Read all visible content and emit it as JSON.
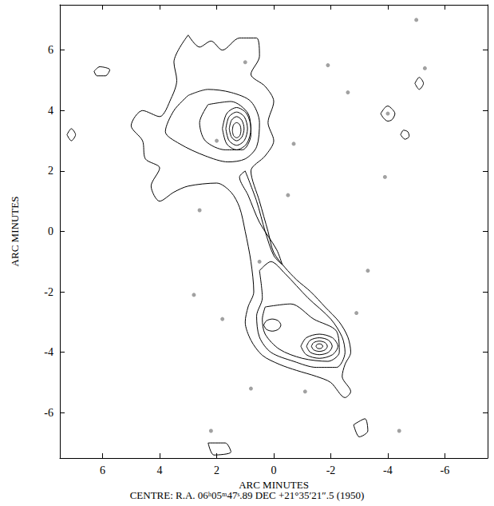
{
  "chart_data": {
    "type": "contour",
    "xlabel": "ARC MINUTES",
    "ylabel": "ARC MINUTES",
    "caption": "CENTRE: R.A. 06ʰ05ᵐ47ˢ.89 DEC +21°35′21″.5 (1950)",
    "xlim": [
      7.5,
      -7.5
    ],
    "ylim": [
      -7.5,
      7.5
    ],
    "xticks": [
      6,
      4,
      2,
      0,
      -2,
      -4,
      -6
    ],
    "yticks": [
      -6,
      -4,
      -2,
      0,
      2,
      4,
      6
    ],
    "grid": false,
    "color": "#000000",
    "contours": [
      [
        [
          3.0,
          6.5
        ],
        [
          2.6,
          6.1
        ],
        [
          2.2,
          6.3
        ],
        [
          1.8,
          6.0
        ],
        [
          1.2,
          6.4
        ],
        [
          0.6,
          6.4
        ],
        [
          0.5,
          5.8
        ],
        [
          0.8,
          5.2
        ],
        [
          0.3,
          4.8
        ],
        [
          0.0,
          4.3
        ],
        [
          0.2,
          3.6
        ],
        [
          0.0,
          3.0
        ],
        [
          0.3,
          2.5
        ],
        [
          0.8,
          2.0
        ],
        [
          0.5,
          1.0
        ],
        [
          0.2,
          0.0
        ],
        [
          0.0,
          -0.7
        ],
        [
          -0.4,
          -1.2
        ],
        [
          -0.8,
          -1.6
        ],
        [
          -1.3,
          -2.0
        ],
        [
          -1.8,
          -2.5
        ],
        [
          -2.3,
          -3.0
        ],
        [
          -2.6,
          -3.5
        ],
        [
          -2.7,
          -4.0
        ],
        [
          -2.5,
          -4.4
        ],
        [
          -2.4,
          -4.8
        ],
        [
          -2.7,
          -5.3
        ],
        [
          -2.5,
          -5.5
        ],
        [
          -2.0,
          -5.0
        ],
        [
          -1.5,
          -4.8
        ],
        [
          -0.8,
          -4.6
        ],
        [
          -0.2,
          -4.4
        ],
        [
          0.4,
          -4.1
        ],
        [
          0.8,
          -3.6
        ],
        [
          1.0,
          -3.0
        ],
        [
          0.9,
          -2.5
        ],
        [
          0.7,
          -2.0
        ],
        [
          0.8,
          -1.0
        ],
        [
          1.0,
          0.0
        ],
        [
          1.2,
          0.8
        ],
        [
          1.5,
          1.3
        ],
        [
          2.0,
          1.6
        ],
        [
          3.0,
          1.5
        ],
        [
          3.5,
          1.3
        ],
        [
          4.0,
          1.0
        ],
        [
          4.3,
          1.5
        ],
        [
          4.0,
          2.1
        ],
        [
          4.5,
          2.4
        ],
        [
          4.6,
          3.0
        ],
        [
          5.0,
          3.5
        ],
        [
          4.6,
          4.0
        ],
        [
          4.0,
          3.8
        ],
        [
          3.6,
          4.4
        ],
        [
          3.4,
          5.0
        ],
        [
          3.5,
          5.6
        ]
      ],
      [
        [
          3.0,
          4.5
        ],
        [
          2.3,
          4.7
        ],
        [
          1.5,
          4.6
        ],
        [
          0.8,
          4.3
        ],
        [
          0.5,
          3.6
        ],
        [
          0.6,
          2.8
        ],
        [
          1.0,
          2.4
        ],
        [
          1.6,
          2.3
        ],
        [
          2.4,
          2.5
        ],
        [
          3.3,
          2.9
        ],
        [
          3.8,
          3.3
        ],
        [
          3.5,
          4.0
        ]
      ],
      [
        [
          2.3,
          4.2
        ],
        [
          1.5,
          4.3
        ],
        [
          0.9,
          3.9
        ],
        [
          0.8,
          3.2
        ],
        [
          1.1,
          2.7
        ],
        [
          1.7,
          2.7
        ],
        [
          2.4,
          3.0
        ],
        [
          2.6,
          3.6
        ]
      ],
      [
        [
          1.8,
          3.4
        ],
        [
          1.65,
          3.9
        ],
        [
          1.3,
          4.1
        ],
        [
          0.95,
          3.9
        ],
        [
          0.8,
          3.4
        ],
        [
          0.95,
          2.9
        ],
        [
          1.3,
          2.7
        ],
        [
          1.65,
          2.9
        ]
      ],
      [
        [
          1.68,
          3.4
        ],
        [
          1.57,
          3.79
        ],
        [
          1.3,
          3.95
        ],
        [
          1.03,
          3.79
        ],
        [
          0.92,
          3.4
        ],
        [
          1.03,
          3.01
        ],
        [
          1.3,
          2.85
        ],
        [
          1.57,
          3.01
        ]
      ],
      [
        [
          1.56,
          3.4
        ],
        [
          1.48,
          3.68
        ],
        [
          1.3,
          3.8
        ],
        [
          1.12,
          3.68
        ],
        [
          1.04,
          3.4
        ],
        [
          1.12,
          3.12
        ],
        [
          1.3,
          3.0
        ],
        [
          1.48,
          3.12
        ]
      ],
      [
        [
          1.45,
          3.35
        ],
        [
          1.41,
          3.53
        ],
        [
          1.3,
          3.6
        ],
        [
          1.19,
          3.53
        ],
        [
          1.15,
          3.35
        ],
        [
          1.19,
          3.17
        ],
        [
          1.3,
          3.1
        ],
        [
          1.41,
          3.17
        ]
      ],
      [
        [
          1.0,
          2.0
        ],
        [
          0.6,
          1.0
        ],
        [
          0.3,
          0.0
        ],
        [
          0.0,
          -0.8
        ],
        [
          -0.3,
          -1.1
        ],
        [
          -0.1,
          -0.6
        ],
        [
          0.5,
          0.3
        ],
        [
          0.9,
          1.2
        ],
        [
          1.2,
          1.8
        ]
      ],
      [
        [
          0.5,
          -1.3
        ],
        [
          0.1,
          -1.0
        ],
        [
          -0.4,
          -1.4
        ],
        [
          -1.2,
          -2.2
        ],
        [
          -2.0,
          -2.9
        ],
        [
          -2.4,
          -3.5
        ],
        [
          -2.5,
          -4.0
        ],
        [
          -2.2,
          -4.5
        ],
        [
          -1.5,
          -4.5
        ],
        [
          -0.7,
          -4.3
        ],
        [
          0.1,
          -4.0
        ],
        [
          0.5,
          -3.5
        ],
        [
          0.6,
          -2.8
        ],
        [
          0.4,
          -2.2
        ]
      ],
      [
        [
          0.3,
          -2.5
        ],
        [
          -0.6,
          -2.4
        ],
        [
          -1.4,
          -2.9
        ],
        [
          -2.2,
          -3.3
        ],
        [
          -2.3,
          -4.0
        ],
        [
          -1.9,
          -4.3
        ],
        [
          -1.0,
          -4.2
        ],
        [
          -0.2,
          -3.9
        ],
        [
          0.3,
          -3.4
        ],
        [
          0.4,
          -2.9
        ]
      ],
      [
        [
          0.35,
          -3.1
        ],
        [
          0.26,
          -2.96
        ],
        [
          0.05,
          -2.9
        ],
        [
          -0.16,
          -2.96
        ],
        [
          -0.25,
          -3.1
        ],
        [
          -0.16,
          -3.24
        ],
        [
          0.05,
          -3.3
        ],
        [
          0.26,
          -3.24
        ]
      ],
      [
        [
          -0.95,
          -3.8
        ],
        [
          -1.14,
          -3.52
        ],
        [
          -1.6,
          -3.4
        ],
        [
          -2.06,
          -3.52
        ],
        [
          -2.25,
          -3.8
        ],
        [
          -2.06,
          -4.08
        ],
        [
          -1.6,
          -4.2
        ],
        [
          -1.14,
          -4.08
        ]
      ],
      [
        [
          -1.15,
          -3.8
        ],
        [
          -1.28,
          -3.6
        ],
        [
          -1.6,
          -3.52
        ],
        [
          -1.92,
          -3.6
        ],
        [
          -2.05,
          -3.8
        ],
        [
          -1.92,
          -4.0
        ],
        [
          -1.6,
          -4.08
        ],
        [
          -1.28,
          -4.0
        ]
      ],
      [
        [
          -1.32,
          -3.8
        ],
        [
          -1.4,
          -3.68
        ],
        [
          -1.6,
          -3.63
        ],
        [
          -1.8,
          -3.68
        ],
        [
          -1.88,
          -3.8
        ],
        [
          -1.8,
          -3.92
        ],
        [
          -1.6,
          -3.97
        ],
        [
          -1.4,
          -3.92
        ]
      ],
      [
        [
          -1.48,
          -3.8
        ],
        [
          -1.52,
          -3.74
        ],
        [
          -1.6,
          -3.72
        ],
        [
          -1.68,
          -3.74
        ],
        [
          -1.72,
          -3.8
        ],
        [
          -1.68,
          -3.86
        ],
        [
          -1.6,
          -3.88
        ],
        [
          -1.52,
          -3.86
        ]
      ],
      [
        [
          -3.75,
          3.9
        ],
        [
          -3.9,
          4.1
        ],
        [
          -4.0,
          4.15
        ],
        [
          -4.15,
          4.05
        ],
        [
          -4.25,
          3.9
        ],
        [
          -4.15,
          3.7
        ],
        [
          -4.0,
          3.65
        ],
        [
          -3.85,
          3.75
        ]
      ],
      [
        [
          -4.45,
          3.2
        ],
        [
          -4.55,
          3.35
        ],
        [
          -4.7,
          3.3
        ],
        [
          -4.75,
          3.15
        ],
        [
          -4.6,
          3.05
        ]
      ],
      [
        [
          7.25,
          3.2
        ],
        [
          7.1,
          3.4
        ],
        [
          6.95,
          3.2
        ],
        [
          7.1,
          3.0
        ]
      ],
      [
        [
          6.3,
          5.3
        ],
        [
          6.1,
          5.45
        ],
        [
          5.75,
          5.35
        ],
        [
          5.9,
          5.15
        ],
        [
          6.2,
          5.15
        ]
      ],
      [
        [
          -4.95,
          4.9
        ],
        [
          -5.1,
          5.1
        ],
        [
          -5.25,
          4.9
        ],
        [
          -5.1,
          4.7
        ]
      ],
      [
        [
          2.3,
          -7.0
        ],
        [
          1.7,
          -7.0
        ],
        [
          1.5,
          -7.3
        ],
        [
          2.1,
          -7.4
        ]
      ],
      [
        [
          -2.8,
          -6.4
        ],
        [
          -3.2,
          -6.2
        ],
        [
          -3.3,
          -6.6
        ],
        [
          -3.0,
          -6.8
        ]
      ]
    ],
    "stars": [
      [
        0.5,
        -1.0
      ],
      [
        -4.0,
        3.9
      ],
      [
        2.0,
        3.0
      ],
      [
        -3.9,
        1.8
      ],
      [
        -2.6,
        4.6
      ],
      [
        -5.3,
        5.4
      ],
      [
        -5.0,
        7.0
      ],
      [
        -1.1,
        -5.3
      ],
      [
        0.8,
        -5.2
      ],
      [
        2.8,
        -2.1
      ],
      [
        1.8,
        -2.9
      ],
      [
        -2.9,
        -2.7
      ],
      [
        -3.3,
        -1.3
      ],
      [
        1.0,
        5.6
      ],
      [
        -1.9,
        5.5
      ],
      [
        2.6,
        0.7
      ],
      [
        -0.5,
        1.2
      ],
      [
        2.2,
        -6.6
      ],
      [
        -4.4,
        -6.6
      ],
      [
        -0.7,
        2.9
      ]
    ]
  }
}
